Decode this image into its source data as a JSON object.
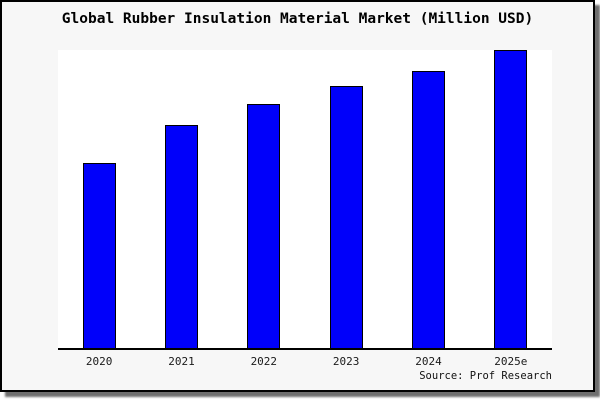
{
  "card": {
    "background": "#f7f7f7",
    "border_color": "#000000",
    "page_background": "#ffffff"
  },
  "title": "Global Rubber Insulation Material Market (Million USD)",
  "source": "Source: Prof Research",
  "chart_data": {
    "type": "bar",
    "title": "Global Rubber Insulation Material Market (Million USD)",
    "categories": [
      "2020",
      "2021",
      "2022",
      "2023",
      "2024",
      "2025e"
    ],
    "values": [
      62,
      75,
      82,
      88,
      93,
      100
    ],
    "units": "relative market size (no y-axis shown), percent of 2025e bar",
    "xlabel": "",
    "ylabel": "",
    "ylim": [
      0,
      100
    ],
    "grid": false,
    "legend": false,
    "bar_color": "#0000fa",
    "bar_edge_color": "#000000",
    "plot_background": "#ffffff",
    "axis_color": "#000000",
    "source_note": "Source: Prof Research"
  }
}
